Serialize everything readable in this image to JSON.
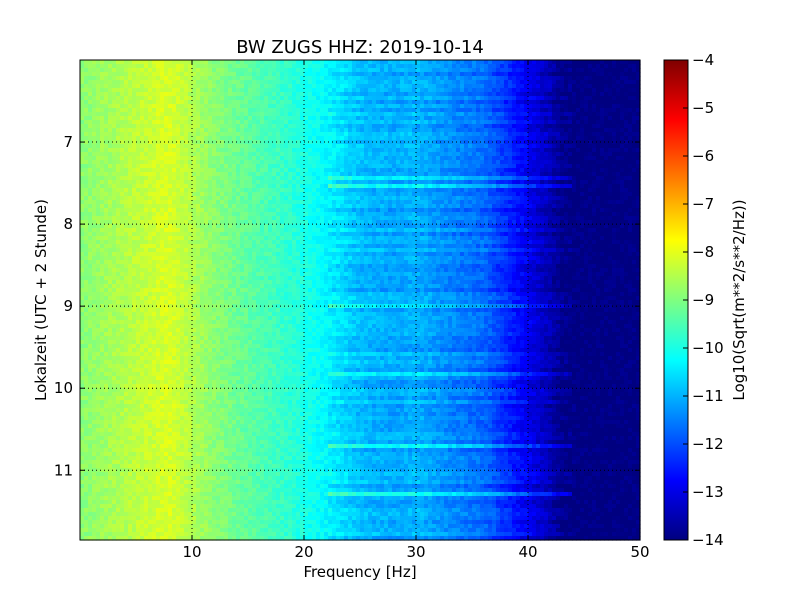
{
  "chart_data": {
    "type": "heatmap",
    "title": "BW ZUGS HHZ: 2019-10-14",
    "xlabel": "Frequency [Hz]",
    "ylabel": "Lokalzeit (UTC + 2 Stunde)",
    "xlim": [
      0,
      50
    ],
    "ylim": [
      11.85,
      6.0
    ],
    "x_ticks": [
      10,
      20,
      30,
      40,
      50
    ],
    "x_tick_labels": [
      "10",
      "20",
      "30",
      "40",
      "50"
    ],
    "y_ticks": [
      7,
      8,
      9,
      10,
      11
    ],
    "y_tick_labels": [
      "7",
      "8",
      "9",
      "10",
      "11"
    ],
    "grid": true,
    "colormap": "jet",
    "colorbar": {
      "label": "Log10(Sqrt(m**2/s**2/Hz))",
      "range": [
        -14,
        -4
      ],
      "ticks": [
        -4,
        -5,
        -6,
        -7,
        -8,
        -9,
        -10,
        -11,
        -12,
        -13,
        -14
      ],
      "tick_labels": [
        "−4",
        "−5",
        "−6",
        "−7",
        "−8",
        "−9",
        "−10",
        "−11",
        "−12",
        "−13",
        "−14"
      ]
    },
    "frequency_profile_hz": [
      0,
      2,
      5,
      8,
      10,
      12,
      15,
      18,
      20,
      22,
      25,
      28,
      30,
      33,
      36,
      38,
      40,
      42,
      43,
      45,
      50
    ],
    "frequency_profile_level": [
      -8.9,
      -8.7,
      -8.4,
      -8.1,
      -8.5,
      -8.9,
      -9.3,
      -9.7,
      -10.0,
      -10.3,
      -10.9,
      -11.1,
      -11.0,
      -11.4,
      -11.7,
      -12.3,
      -12.9,
      -13.5,
      -13.9,
      -14.0,
      -14.0
    ]
  }
}
